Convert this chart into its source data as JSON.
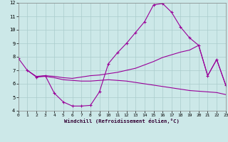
{
  "bg_color": "#cce8e8",
  "line_color": "#990099",
  "grid_color": "#aacccc",
  "xlim": [
    0,
    23
  ],
  "ylim": [
    4,
    12
  ],
  "yticks": [
    4,
    5,
    6,
    7,
    8,
    9,
    10,
    11,
    12
  ],
  "xticks": [
    0,
    1,
    2,
    3,
    4,
    5,
    6,
    7,
    8,
    9,
    10,
    11,
    12,
    13,
    14,
    15,
    16,
    17,
    18,
    19,
    20,
    21,
    22,
    23
  ],
  "line1_x": [
    0,
    1,
    2,
    3,
    4,
    5,
    6,
    7,
    8,
    9,
    10,
    11,
    12,
    13,
    14,
    15,
    16,
    17,
    18,
    19,
    20,
    21,
    22,
    23
  ],
  "line1_y": [
    7.9,
    7.0,
    6.5,
    6.6,
    5.3,
    4.65,
    4.35,
    4.35,
    4.4,
    5.4,
    7.5,
    8.3,
    9.0,
    9.8,
    10.6,
    11.85,
    11.95,
    11.3,
    10.2,
    9.4,
    8.85,
    6.6,
    7.8,
    5.9
  ],
  "line2_x": [
    1,
    2,
    3,
    4,
    5,
    6,
    7,
    8,
    9,
    10,
    11,
    12,
    13,
    14,
    15,
    16,
    17,
    18,
    19,
    20,
    21,
    22,
    23
  ],
  "line2_y": [
    7.0,
    6.55,
    6.6,
    6.55,
    6.45,
    6.4,
    6.5,
    6.6,
    6.65,
    6.75,
    6.85,
    7.0,
    7.15,
    7.4,
    7.65,
    7.95,
    8.15,
    8.35,
    8.5,
    8.85,
    6.6,
    7.8,
    5.9
  ],
  "line3_x": [
    2,
    3,
    4,
    5,
    6,
    7,
    8,
    9,
    10,
    11,
    12,
    13,
    14,
    15,
    16,
    17,
    18,
    19,
    20,
    21,
    22,
    23
  ],
  "line3_y": [
    6.5,
    6.55,
    6.45,
    6.3,
    6.25,
    6.2,
    6.2,
    6.25,
    6.3,
    6.25,
    6.2,
    6.1,
    6.0,
    5.9,
    5.8,
    5.7,
    5.6,
    5.5,
    5.45,
    5.4,
    5.35,
    5.2
  ],
  "xlabel": "Windchill (Refroidissement éolien,°C)"
}
